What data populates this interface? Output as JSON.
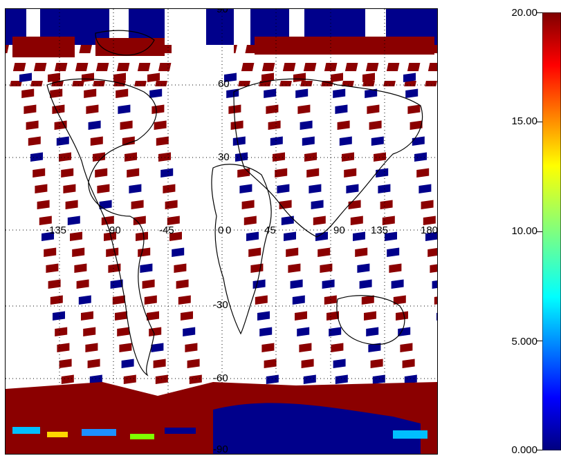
{
  "map": {
    "top_label": "90",
    "bottom_label": "-90",
    "lat_labels": [
      "60",
      "30",
      "0",
      "-30",
      "-60"
    ],
    "lon_labels": [
      "-135",
      "-90",
      "-45",
      "0",
      "45",
      "90",
      "135",
      "180"
    ],
    "projection": "equirectangular-stretched",
    "land_outline_color": "#000000",
    "grid": "dotted"
  },
  "colorbar": {
    "ticks": [
      "20.00",
      "15.00",
      "10.00",
      "5.000",
      "0.000"
    ],
    "colormap": "jet",
    "low_color": "#00007f",
    "high_color": "#7f0000"
  }
}
